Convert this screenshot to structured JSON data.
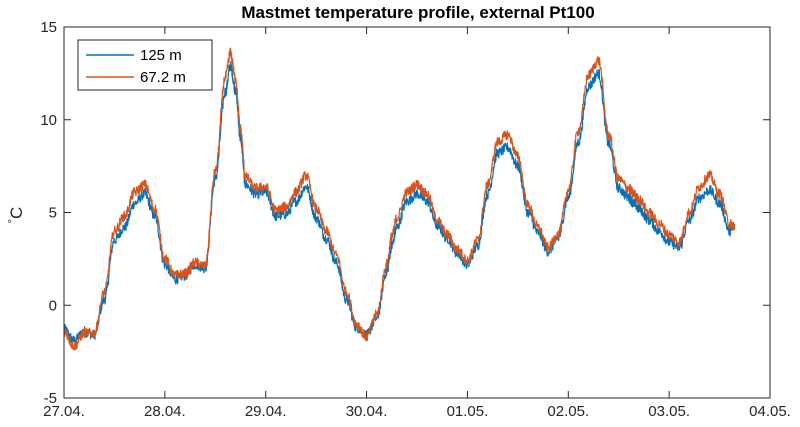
{
  "chart_data": {
    "type": "line",
    "title": "Mastmet temperature profile, external Pt100",
    "xlabel": "",
    "ylabel": "°C",
    "ylabel_unit": "C",
    "ylabel_degree": "°",
    "xlim": [
      0,
      7
    ],
    "ylim": [
      -5,
      15
    ],
    "xticks": [
      0,
      1,
      2,
      3,
      4,
      5,
      6,
      7
    ],
    "xtick_labels": [
      "27.04.",
      "28.04.",
      "29.04.",
      "30.04.",
      "01.05.",
      "02.05.",
      "03.05.",
      "04.05."
    ],
    "yticks": [
      -5,
      0,
      5,
      10,
      15
    ],
    "ytick_labels": [
      "-5",
      "0",
      "5",
      "10",
      "15"
    ],
    "grid": false,
    "legend_position": "top-left",
    "series": [
      {
        "name": "125 m",
        "color": "#0072BD",
        "x": [
          0.0,
          0.1,
          0.2,
          0.3,
          0.4,
          0.5,
          0.6,
          0.7,
          0.8,
          0.9,
          1.0,
          1.1,
          1.2,
          1.3,
          1.4,
          1.5,
          1.6,
          1.65,
          1.7,
          1.75,
          1.8,
          1.9,
          2.0,
          2.1,
          2.2,
          2.3,
          2.4,
          2.5,
          2.6,
          2.7,
          2.8,
          2.9,
          3.0,
          3.1,
          3.2,
          3.25,
          3.3,
          3.4,
          3.5,
          3.6,
          3.7,
          3.8,
          3.9,
          4.0,
          4.1,
          4.2,
          4.3,
          4.4,
          4.5,
          4.6,
          4.7,
          4.8,
          4.9,
          5.0,
          5.1,
          5.2,
          5.3,
          5.4,
          5.5,
          5.6,
          5.65,
          5.7,
          5.8,
          5.9,
          6.0,
          6.1,
          6.2,
          6.3,
          6.4,
          6.5,
          6.6,
          6.65
        ],
        "y": [
          -1.3,
          -1.9,
          -1.4,
          -1.6,
          0.3,
          3.5,
          4.2,
          5.5,
          6.0,
          4.8,
          2.2,
          1.4,
          1.6,
          2.2,
          2.0,
          6.8,
          11.5,
          12.9,
          11.6,
          9.0,
          6.5,
          6.0,
          6.1,
          4.8,
          4.9,
          5.6,
          6.4,
          4.7,
          3.6,
          2.3,
          0.3,
          -1.2,
          -1.6,
          -0.7,
          1.8,
          3.2,
          4.2,
          5.6,
          6.0,
          5.6,
          4.3,
          3.6,
          2.8,
          2.2,
          3.2,
          6.0,
          8.2,
          8.5,
          7.5,
          5.0,
          3.9,
          2.9,
          3.6,
          5.8,
          8.8,
          11.8,
          12.5,
          8.7,
          6.3,
          5.8,
          5.5,
          5.2,
          4.6,
          4.0,
          3.4,
          3.1,
          4.6,
          5.8,
          6.2,
          5.5,
          4.0,
          4.3
        ]
      },
      {
        "name": "67.2 m",
        "color": "#D95319",
        "x": [
          0.0,
          0.1,
          0.2,
          0.3,
          0.4,
          0.5,
          0.6,
          0.7,
          0.8,
          0.9,
          1.0,
          1.1,
          1.2,
          1.3,
          1.4,
          1.5,
          1.6,
          1.65,
          1.7,
          1.75,
          1.8,
          1.9,
          2.0,
          2.1,
          2.2,
          2.3,
          2.4,
          2.5,
          2.6,
          2.7,
          2.8,
          2.9,
          3.0,
          3.1,
          3.2,
          3.25,
          3.3,
          3.4,
          3.5,
          3.6,
          3.7,
          3.8,
          3.9,
          4.0,
          4.1,
          4.2,
          4.3,
          4.4,
          4.5,
          4.6,
          4.7,
          4.8,
          4.9,
          5.0,
          5.1,
          5.2,
          5.3,
          5.4,
          5.5,
          5.6,
          5.65,
          5.7,
          5.8,
          5.9,
          6.0,
          6.1,
          6.2,
          6.3,
          6.4,
          6.5,
          6.6,
          6.65
        ],
        "y": [
          -1.4,
          -2.2,
          -1.5,
          -1.5,
          0.7,
          4.0,
          4.8,
          6.1,
          6.5,
          5.2,
          2.5,
          1.6,
          1.7,
          2.3,
          2.1,
          7.2,
          12.3,
          13.6,
          12.2,
          9.5,
          6.9,
          6.3,
          6.4,
          5.1,
          5.3,
          6.1,
          7.0,
          5.2,
          4.0,
          2.7,
          0.7,
          -1.0,
          -1.7,
          -0.5,
          2.2,
          3.7,
          4.7,
          6.1,
          6.5,
          6.0,
          4.6,
          3.8,
          3.0,
          2.4,
          3.5,
          6.5,
          8.8,
          9.2,
          8.0,
          5.4,
          4.2,
          3.1,
          3.8,
          6.2,
          9.4,
          12.4,
          13.2,
          9.2,
          6.8,
          6.3,
          6.0,
          5.7,
          5.0,
          4.4,
          3.8,
          3.4,
          5.0,
          6.4,
          7.0,
          6.0,
          4.4,
          4.2
        ]
      }
    ]
  }
}
